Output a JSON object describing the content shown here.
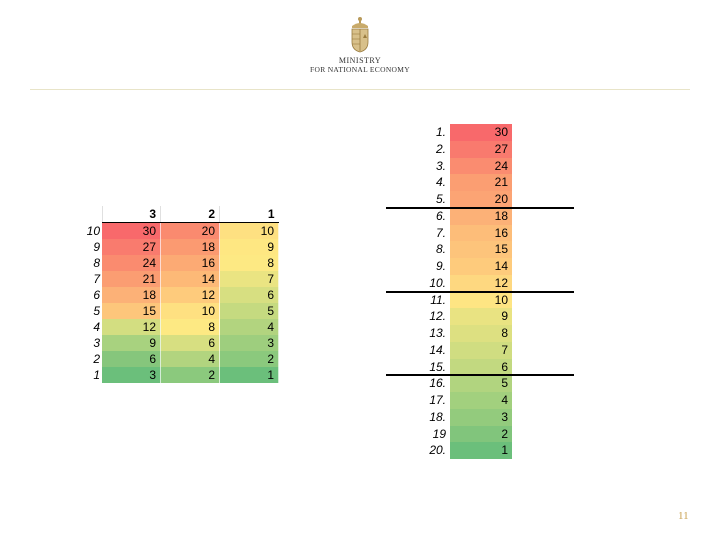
{
  "header": {
    "line1": "MINISTRY",
    "line2": "FOR NATIONAL ECONOMY",
    "logo_icon": "coat-of-arms-icon"
  },
  "left_table": {
    "headers": [
      "3",
      "2",
      "1"
    ],
    "rows": [
      {
        "label": "10",
        "values": [
          "30",
          "20",
          "10"
        ],
        "colors": [
          "#f8696b",
          "#fa8a6f",
          "#fee081"
        ]
      },
      {
        "label": "9",
        "values": [
          "27",
          "18",
          "9"
        ],
        "colors": [
          "#f97b6e",
          "#fb9a71",
          "#fee782"
        ]
      },
      {
        "label": "8",
        "values": [
          "24",
          "16",
          "8"
        ],
        "colors": [
          "#fa8b6f",
          "#fcaa74",
          "#fde983"
        ]
      },
      {
        "label": "7",
        "values": [
          "21",
          "14",
          "7"
        ],
        "colors": [
          "#fb9d72",
          "#fdb977",
          "#eae482"
        ]
      },
      {
        "label": "6",
        "values": [
          "18",
          "12",
          "6"
        ],
        "colors": [
          "#fcb177",
          "#fecb7c",
          "#d7df81"
        ]
      },
      {
        "label": "5",
        "values": [
          "15",
          "10",
          "5"
        ],
        "colors": [
          "#fdc67b",
          "#fee081",
          "#c5da80"
        ]
      },
      {
        "label": "4",
        "values": [
          "12",
          "8",
          "4"
        ],
        "colors": [
          "#d3de81",
          "#fde983",
          "#b2d47f"
        ]
      },
      {
        "label": "3",
        "values": [
          "9",
          "6",
          "3"
        ],
        "colors": [
          "#a8d27f",
          "#d7df81",
          "#9ece7e"
        ]
      },
      {
        "label": "2",
        "values": [
          "6",
          "4",
          "2"
        ],
        "colors": [
          "#86c67c",
          "#b2d47f",
          "#8bc97d"
        ]
      },
      {
        "label": "1",
        "values": [
          "3",
          "2",
          "1"
        ],
        "colors": [
          "#6bbf7b",
          "#8bc97d",
          "#6bbf7b"
        ]
      }
    ]
  },
  "ranking": {
    "rows": [
      {
        "rank": "1.",
        "value": "30",
        "color": "#f8696b"
      },
      {
        "rank": "2.",
        "value": "27",
        "color": "#f97a6e"
      },
      {
        "rank": "3.",
        "value": "24",
        "color": "#fa8c70"
      },
      {
        "rank": "4.",
        "value": "21",
        "color": "#fb9e72"
      },
      {
        "rank": "5.",
        "value": "20",
        "color": "#fca474"
      },
      {
        "rank": "6.",
        "value": "18",
        "color": "#fcb177"
      },
      {
        "rank": "7.",
        "value": "16",
        "color": "#fdbd79"
      },
      {
        "rank": "8.",
        "value": "15",
        "color": "#fdc47b"
      },
      {
        "rank": "9.",
        "value": "14",
        "color": "#fecb7c"
      },
      {
        "rank": "10.",
        "value": "12",
        "color": "#fed880"
      },
      {
        "rank": "11.",
        "value": "10",
        "color": "#fee583"
      },
      {
        "rank": "12.",
        "value": "9",
        "color": "#e9e382"
      },
      {
        "rank": "13.",
        "value": "8",
        "color": "#dde081"
      },
      {
        "rank": "14.",
        "value": "7",
        "color": "#d0dd81"
      },
      {
        "rank": "15.",
        "value": "6",
        "color": "#c2d980"
      },
      {
        "rank": "16.",
        "value": "5",
        "color": "#b1d47f"
      },
      {
        "rank": "17.",
        "value": "4",
        "color": "#a2d07e"
      },
      {
        "rank": "18.",
        "value": "3",
        "color": "#93cb7d"
      },
      {
        "rank": "19",
        "value": "2",
        "color": "#81c57c"
      },
      {
        "rank": "20.",
        "value": "1",
        "color": "#6bbf7b"
      }
    ],
    "separators_after": [
      5,
      10,
      15
    ]
  },
  "page_number": "11"
}
